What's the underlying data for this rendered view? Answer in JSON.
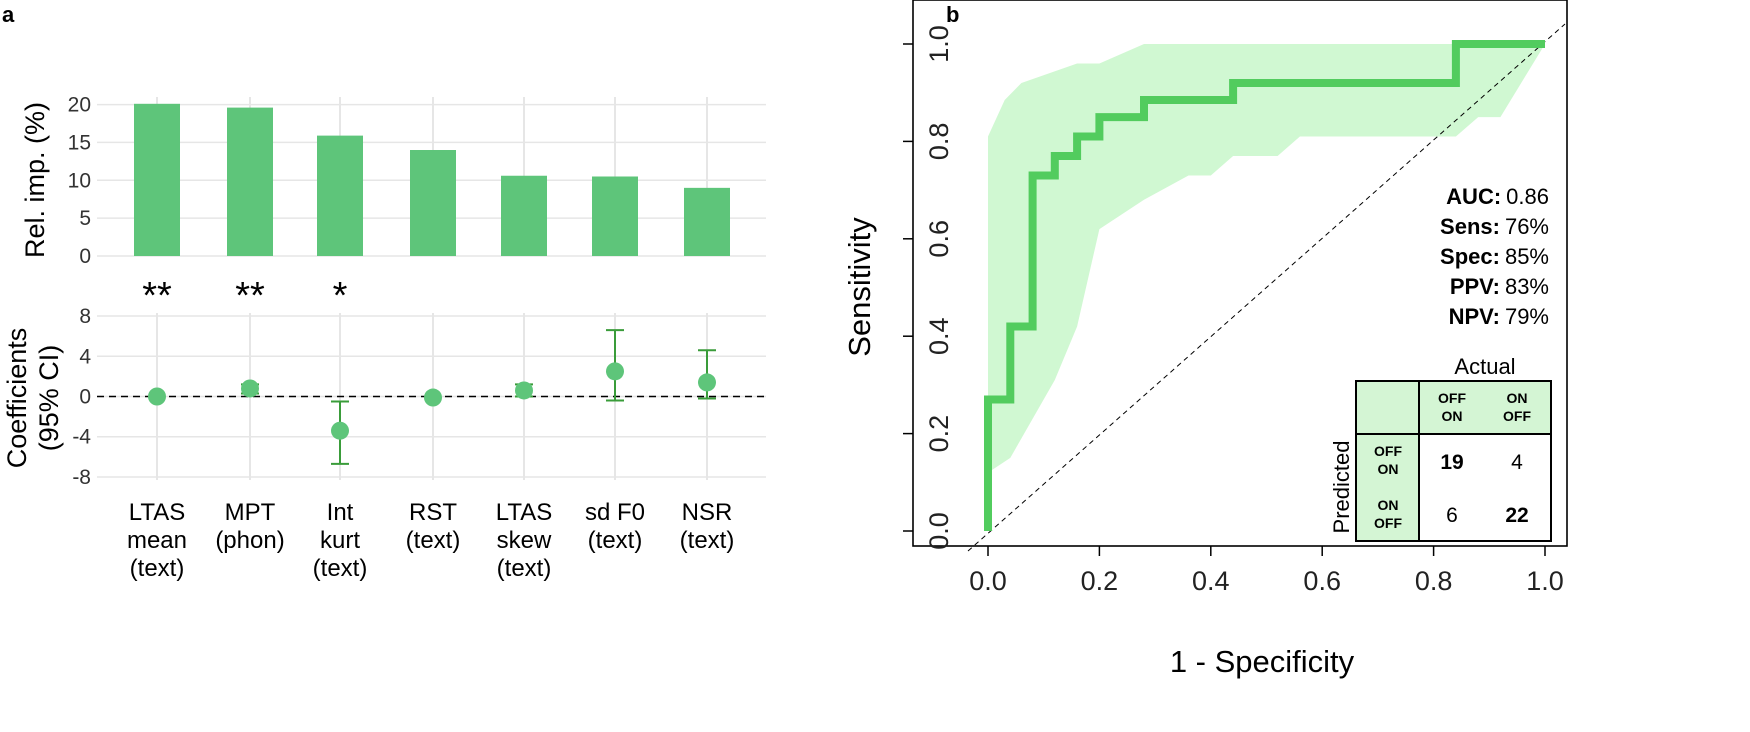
{
  "colors": {
    "bar": "#5ec57a",
    "point": "#5ec57a",
    "errorbar": "#3a9c3a",
    "roc_line": "#52cc5e",
    "roc_band": "#d0f8d2",
    "cm_fill": "#d4f5d4",
    "grid": "#e6e6e6"
  },
  "panels": {
    "a": "a",
    "b": "b"
  },
  "chart_data": [
    {
      "type": "bar",
      "ylabel": "Rel. imp. (%)",
      "categories": [
        "LTAS\nmean\n(text)",
        "MPT\n(phon)",
        "Int\nkurt\n(text)",
        "RST\n(text)",
        "LTAS\nskew\n(text)",
        "sd F0\n(text)",
        "NSR\n(text)"
      ],
      "values": [
        20.1,
        19.6,
        15.9,
        14.0,
        10.6,
        10.5,
        9.0
      ],
      "ylim": [
        0,
        21
      ],
      "yticks": [
        "0",
        "5",
        "10",
        "15",
        "20"
      ],
      "significance": [
        "**",
        "**",
        "*",
        "",
        "",
        "",
        ""
      ],
      "grid": true
    },
    {
      "type": "scatter",
      "ylabel_lines": [
        "Coefficients",
        "(95% CI)"
      ],
      "categories": [
        "LTAS\nmean\n(text)",
        "MPT\n(phon)",
        "Int\nkurt\n(text)",
        "RST\n(text)",
        "LTAS\nskew\n(text)",
        "sd F0\n(text)",
        "NSR\n(text)"
      ],
      "estimate": [
        0.0,
        0.8,
        -3.4,
        -0.1,
        0.6,
        2.5,
        1.4
      ],
      "lower": [
        null,
        0.3,
        -6.7,
        null,
        0.0,
        -0.4,
        -0.2
      ],
      "upper": [
        null,
        1.2,
        -0.5,
        null,
        1.2,
        6.6,
        4.6
      ],
      "ylim": [
        -8.3,
        8.3
      ],
      "yticks": [
        "8",
        "4",
        "0",
        "-4",
        "-8"
      ],
      "reference_line": 0,
      "grid": true
    },
    {
      "type": "line",
      "xlabel": "1 - Specificity",
      "ylabel": "Sensitivity",
      "xlim": [
        0,
        1
      ],
      "ylim": [
        0,
        1
      ],
      "xticks": [
        "0.0",
        "0.2",
        "0.4",
        "0.6",
        "0.8",
        "1.0"
      ],
      "yticks": [
        "0.0",
        "0.2",
        "0.4",
        "0.6",
        "0.8",
        "1.0"
      ],
      "roc": [
        [
          0,
          0
        ],
        [
          0,
          0.27
        ],
        [
          0.04,
          0.27
        ],
        [
          0.04,
          0.42
        ],
        [
          0.08,
          0.42
        ],
        [
          0.08,
          0.73
        ],
        [
          0.12,
          0.73
        ],
        [
          0.12,
          0.77
        ],
        [
          0.16,
          0.77
        ],
        [
          0.16,
          0.81
        ],
        [
          0.2,
          0.81
        ],
        [
          0.2,
          0.85
        ],
        [
          0.28,
          0.85
        ],
        [
          0.28,
          0.885
        ],
        [
          0.44,
          0.885
        ],
        [
          0.44,
          0.92
        ],
        [
          0.84,
          0.92
        ],
        [
          0.84,
          1.0
        ],
        [
          1.0,
          1.0
        ]
      ],
      "ci_upper": [
        [
          0,
          0.12
        ],
        [
          0,
          0.81
        ],
        [
          0.03,
          0.885
        ],
        [
          0.06,
          0.92
        ],
        [
          0.16,
          0.96
        ],
        [
          0.2,
          0.96
        ],
        [
          0.28,
          1.0
        ],
        [
          1.0,
          1.0
        ]
      ],
      "ci_lower": [
        [
          0,
          0
        ],
        [
          0.0,
          0.12
        ],
        [
          0.04,
          0.15
        ],
        [
          0.12,
          0.31
        ],
        [
          0.16,
          0.42
        ],
        [
          0.2,
          0.62
        ],
        [
          0.28,
          0.68
        ],
        [
          0.36,
          0.73
        ],
        [
          0.4,
          0.73
        ],
        [
          0.44,
          0.77
        ],
        [
          0.52,
          0.77
        ],
        [
          0.56,
          0.81
        ],
        [
          0.84,
          0.81
        ],
        [
          0.88,
          0.85
        ],
        [
          0.92,
          0.85
        ],
        [
          1.0,
          1.0
        ]
      ],
      "diagonal": true
    }
  ],
  "stats": [
    {
      "key": "AUC:",
      "value": "0.86"
    },
    {
      "key": "Sens:",
      "value": "76%"
    },
    {
      "key": "Spec:",
      "value": "85%"
    },
    {
      "key": "PPV:",
      "value": "83%"
    },
    {
      "key": "NPV:",
      "value": "79%"
    }
  ],
  "confusion": {
    "actual_label": "Actual",
    "predicted_label": "Predicted",
    "col_headers": [
      [
        "OFF",
        "ON"
      ],
      [
        "ON",
        "OFF"
      ]
    ],
    "row_headers": [
      [
        "OFF",
        "ON"
      ],
      [
        "ON",
        "OFF"
      ]
    ],
    "cells": [
      [
        "19",
        "4"
      ],
      [
        "6",
        "22"
      ]
    ],
    "bold": [
      [
        true,
        false
      ],
      [
        false,
        true
      ]
    ]
  }
}
